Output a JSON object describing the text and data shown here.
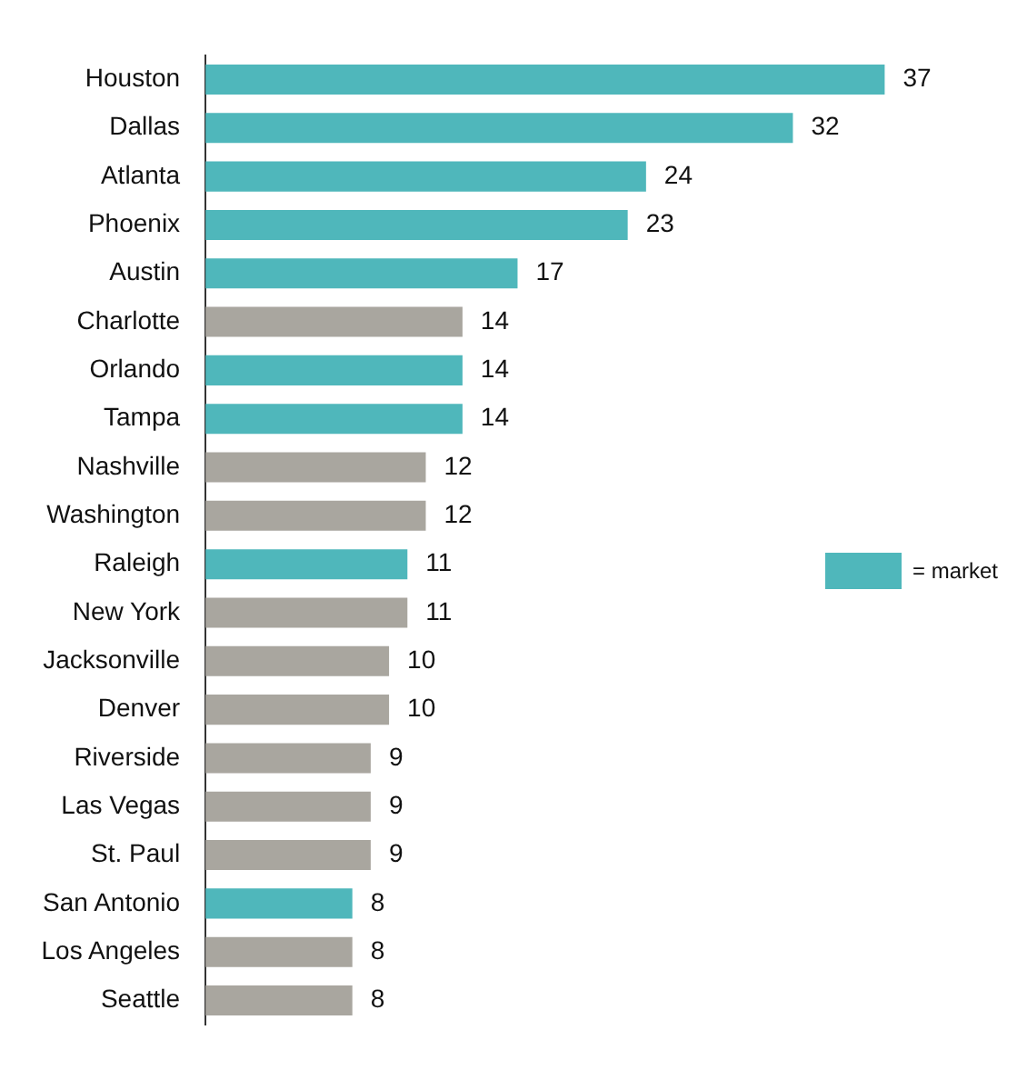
{
  "chart_data": {
    "type": "bar",
    "orientation": "horizontal",
    "stacked": true,
    "data_labels": true,
    "legend": "right",
    "grid": false,
    "categories": [
      "Houston",
      "Dallas",
      "Atlanta",
      "Phoenix",
      "Austin",
      "Charlotte",
      "Orlando",
      "Tampa",
      "Nashville",
      "Washington",
      "Raleigh",
      "New York",
      "Jacksonville",
      "Denver",
      "Riverside",
      "Las Vegas",
      "St. Paul",
      "San Antonio",
      "Los Angeles",
      "Seattle"
    ],
    "series": [
      {
        "name": "= market",
        "color": "#4fb7bb",
        "values": [
          37,
          32,
          24,
          23,
          17,
          null,
          14,
          14,
          null,
          null,
          11,
          null,
          null,
          null,
          null,
          null,
          null,
          8,
          null,
          null
        ]
      },
      {
        "color": "#a9a69f",
        "values": [
          null,
          null,
          null,
          null,
          null,
          14,
          null,
          null,
          12,
          12,
          null,
          11,
          10,
          10,
          9,
          9,
          9,
          null,
          8,
          8
        ]
      }
    ]
  }
}
